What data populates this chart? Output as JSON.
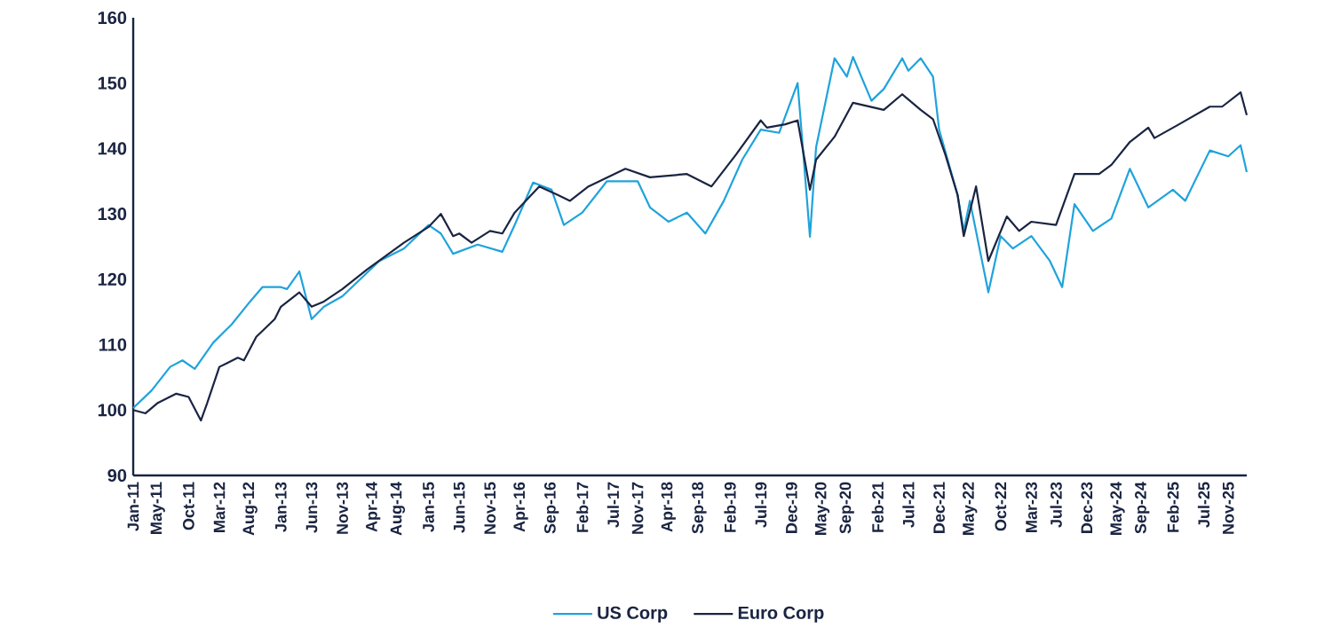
{
  "chart_data": {
    "type": "line",
    "xlim": [
      "2011-01",
      "2026-02"
    ],
    "ylim": [
      90,
      160
    ],
    "yticks": [
      90,
      100,
      110,
      120,
      130,
      140,
      150,
      160
    ],
    "xticks": [
      {
        "value": "2011-01",
        "label": "Jan-11"
      },
      {
        "value": "2011-05",
        "label": "May-11"
      },
      {
        "value": "2011-10",
        "label": "Oct-11"
      },
      {
        "value": "2012-03",
        "label": "Mar-12"
      },
      {
        "value": "2012-08",
        "label": "Aug-12"
      },
      {
        "value": "2013-01",
        "label": "Jan-13"
      },
      {
        "value": "2013-06",
        "label": "Jun-13"
      },
      {
        "value": "2013-11",
        "label": "Nov-13"
      },
      {
        "value": "2014-04",
        "label": "Apr-14"
      },
      {
        "value": "2014-08",
        "label": "Aug-14"
      },
      {
        "value": "2015-01",
        "label": "Jan-15"
      },
      {
        "value": "2015-06",
        "label": "Jun-15"
      },
      {
        "value": "2015-11",
        "label": "Nov-15"
      },
      {
        "value": "2016-04",
        "label": "Apr-16"
      },
      {
        "value": "2016-09",
        "label": "Sep-16"
      },
      {
        "value": "2017-02",
        "label": "Feb-17"
      },
      {
        "value": "2017-07",
        "label": "Jul-17"
      },
      {
        "value": "2017-11",
        "label": "Nov-17"
      },
      {
        "value": "2018-04",
        "label": "Apr-18"
      },
      {
        "value": "2018-09",
        "label": "Sep-18"
      },
      {
        "value": "2019-02",
        "label": "Feb-19"
      },
      {
        "value": "2019-07",
        "label": "Jul-19"
      },
      {
        "value": "2019-12",
        "label": "Dec-19"
      },
      {
        "value": "2020-05",
        "label": "May-20"
      },
      {
        "value": "2020-09",
        "label": "Sep-20"
      },
      {
        "value": "2021-02",
        "label": "Feb-21"
      },
      {
        "value": "2021-07",
        "label": "Jul-21"
      },
      {
        "value": "2021-12",
        "label": "Dec-21"
      },
      {
        "value": "2022-05",
        "label": "May-22"
      },
      {
        "value": "2022-10",
        "label": "Oct-22"
      },
      {
        "value": "2023-03",
        "label": "Mar-23"
      },
      {
        "value": "2023-07",
        "label": "Jul-23"
      },
      {
        "value": "2023-12",
        "label": "Dec-23"
      },
      {
        "value": "2024-05",
        "label": "May-24"
      },
      {
        "value": "2024-09",
        "label": "Sep-24"
      },
      {
        "value": "2025-02",
        "label": "Feb-25"
      },
      {
        "value": "2025-07",
        "label": "Jul-25"
      },
      {
        "value": "2025-11",
        "label": "Nov-25"
      }
    ],
    "legend": "bottom",
    "series": [
      {
        "name": "US Corp",
        "color": "#1fa3dc",
        "x": [
          "2011-01",
          "2011-04",
          "2011-07",
          "2011-09",
          "2011-11",
          "2012-02",
          "2012-05",
          "2012-08",
          "2012-10",
          "2013-01",
          "2013-02",
          "2013-04",
          "2013-06",
          "2013-08",
          "2013-11",
          "2014-05",
          "2014-09",
          "2015-01",
          "2015-03",
          "2015-05",
          "2015-09",
          "2016-01",
          "2016-03",
          "2016-06",
          "2016-09",
          "2016-11",
          "2017-02",
          "2017-06",
          "2017-11",
          "2018-01",
          "2018-04",
          "2018-07",
          "2018-10",
          "2019-01",
          "2019-04",
          "2019-07",
          "2019-10",
          "2020-01",
          "2020-03",
          "2020-04",
          "2020-07",
          "2020-09",
          "2020-10",
          "2021-01",
          "2021-03",
          "2021-06",
          "2021-07",
          "2021-09",
          "2021-11",
          "2021-12",
          "2022-03",
          "2022-04",
          "2022-05",
          "2022-08",
          "2022-10",
          "2022-12",
          "2023-03",
          "2023-06",
          "2023-08",
          "2023-10",
          "2024-01",
          "2024-04",
          "2024-07",
          "2024-10",
          "2025-02",
          "2025-04",
          "2025-08",
          "2025-11",
          "2026-01",
          "2026-02"
        ],
        "values": [
          100.3,
          103,
          106.6,
          107.6,
          106.3,
          110.3,
          113.1,
          116.6,
          118.8,
          118.8,
          118.5,
          121.2,
          113.9,
          115.8,
          117.4,
          122.8,
          124.7,
          128.3,
          127,
          123.9,
          125.3,
          124.2,
          128.3,
          134.8,
          133.7,
          128.3,
          130.2,
          135,
          135,
          131,
          128.8,
          130.2,
          127,
          132,
          138.3,
          142.9,
          142.4,
          150,
          126.5,
          140.2,
          153.8,
          151,
          154,
          147.3,
          149.1,
          153.8,
          151.9,
          153.8,
          151,
          142.9,
          132.9,
          127.4,
          132,
          118,
          126.6,
          124.7,
          126.6,
          122.8,
          118.8,
          131.5,
          127.4,
          129.3,
          136.9,
          131,
          133.7,
          132,
          139.7,
          138.8,
          140.5,
          136.4
        ]
      },
      {
        "name": "Euro Corp",
        "color": "#1a2442",
        "x": [
          "2011-01",
          "2011-03",
          "2011-05",
          "2011-08",
          "2011-10",
          "2011-12",
          "2012-01",
          "2012-03",
          "2012-06",
          "2012-07",
          "2012-09",
          "2012-12",
          "2013-01",
          "2013-04",
          "2013-06",
          "2013-08",
          "2013-11",
          "2014-03",
          "2014-09",
          "2015-01",
          "2015-03",
          "2015-05",
          "2015-06",
          "2015-08",
          "2015-11",
          "2016-01",
          "2016-03",
          "2016-07",
          "2016-10",
          "2016-12",
          "2017-03",
          "2017-09",
          "2018-01",
          "2018-07",
          "2018-11",
          "2019-03",
          "2019-07",
          "2019-08",
          "2019-11",
          "2020-01",
          "2020-03",
          "2020-04",
          "2020-07",
          "2020-10",
          "2021-03",
          "2021-06",
          "2021-09",
          "2021-11",
          "2022-01",
          "2022-03",
          "2022-04",
          "2022-06",
          "2022-08",
          "2022-11",
          "2023-01",
          "2023-03",
          "2023-07",
          "2023-10",
          "2024-02",
          "2024-04",
          "2024-07",
          "2024-10",
          "2024-11",
          "2025-03",
          "2025-08",
          "2025-10",
          "2026-01",
          "2026-02"
        ],
        "values": [
          100,
          99.5,
          101.1,
          102.5,
          102,
          98.4,
          101,
          106.6,
          108,
          107.6,
          111.2,
          113.9,
          115.8,
          118,
          115.8,
          116.6,
          118.5,
          121.5,
          125.6,
          128,
          130,
          126.6,
          127,
          125.6,
          127.4,
          127,
          130.2,
          134.2,
          132.9,
          132,
          134.2,
          136.9,
          135.6,
          136.1,
          134.2,
          139.1,
          144.3,
          143.2,
          143.7,
          144.3,
          133.7,
          138.3,
          141.8,
          147,
          145.9,
          148.3,
          145.9,
          144.5,
          139.1,
          132.9,
          126.6,
          134.2,
          122.8,
          129.6,
          127.4,
          128.8,
          128.3,
          136.1,
          136.1,
          137.5,
          141,
          143.2,
          141.6,
          143.7,
          146.4,
          146.4,
          148.6,
          145.1
        ]
      }
    ]
  }
}
